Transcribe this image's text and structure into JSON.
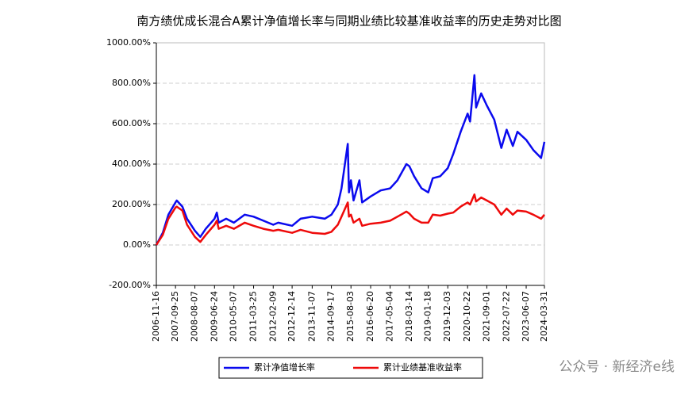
{
  "chart_data": {
    "type": "line",
    "title": "南方绩优成长混合A累计净值增长率与同期业绩比较基准收益率的历史走势对比图",
    "x": [
      "2006-11-16",
      "2007-03-01",
      "2007-06-01",
      "2007-09-25",
      "2007-10-16",
      "2008-01-15",
      "2008-04-01",
      "2008-08-07",
      "2008-11-04",
      "2009-02-01",
      "2009-06-24",
      "2009-08-01",
      "2009-09-01",
      "2010-01-01",
      "2010-05-07",
      "2010-11-01",
      "2011-03-25",
      "2011-09-01",
      "2012-02-09",
      "2012-05-01",
      "2012-12-14",
      "2013-05-01",
      "2013-11-07",
      "2014-06-01",
      "2014-09-17",
      "2014-12-31",
      "2015-03-01",
      "2015-06-12",
      "2015-07-01",
      "2015-08-03",
      "2015-09-15",
      "2015-12-20",
      "2016-02-01",
      "2016-06-20",
      "2016-12-01",
      "2017-05-04",
      "2017-09-01",
      "2018-01-25",
      "2018-03-14",
      "2018-06-01",
      "2018-10-01",
      "2019-01-18",
      "2019-04-01",
      "2019-08-01",
      "2019-12-03",
      "2020-03-01",
      "2020-07-01",
      "2020-10-22",
      "2020-12-01",
      "2021-02-10",
      "2021-03-10",
      "2021-06-01",
      "2021-09-01",
      "2022-01-01",
      "2022-04-27",
      "2022-07-22",
      "2022-11-01",
      "2023-01-15",
      "2023-06-07",
      "2023-10-01",
      "2024-02-05",
      "2024-03-31"
    ],
    "series": [
      {
        "name": "累计净值增长率",
        "color": "#0a0aee",
        "values": [
          0,
          60,
          150,
          210,
          220,
          190,
          130,
          70,
          40,
          80,
          130,
          160,
          110,
          130,
          110,
          150,
          140,
          120,
          100,
          110,
          95,
          130,
          140,
          130,
          150,
          200,
          280,
          500,
          260,
          320,
          220,
          320,
          210,
          240,
          270,
          280,
          320,
          400,
          390,
          340,
          280,
          260,
          330,
          340,
          380,
          450,
          560,
          650,
          610,
          840,
          680,
          750,
          690,
          620,
          480,
          570,
          490,
          560,
          520,
          470,
          430,
          510
        ]
      },
      {
        "name": "累计业绩基准收益率",
        "color": "#ee0a0a",
        "values": [
          0,
          50,
          130,
          185,
          190,
          170,
          100,
          40,
          15,
          50,
          100,
          120,
          80,
          95,
          80,
          110,
          95,
          80,
          70,
          75,
          60,
          75,
          60,
          55,
          65,
          100,
          140,
          210,
          140,
          150,
          110,
          130,
          95,
          105,
          110,
          120,
          140,
          165,
          155,
          130,
          110,
          110,
          150,
          145,
          155,
          160,
          190,
          210,
          200,
          250,
          215,
          235,
          220,
          200,
          150,
          180,
          150,
          170,
          165,
          150,
          130,
          150
        ]
      }
    ],
    "xlim": [
      "2006-11-16",
      "2024-03-31"
    ],
    "xticks": [
      "2006-11-16",
      "2007-09-25",
      "2008-08-07",
      "2009-06-24",
      "2010-05-07",
      "2011-03-25",
      "2012-02-09",
      "2012-12-14",
      "2013-11-07",
      "2014-09-17",
      "2015-08-03",
      "2016-06-20",
      "2017-05-04",
      "2018-03-14",
      "2019-01-18",
      "2019-12-03",
      "2020-10-22",
      "2021-09-01",
      "2022-07-22",
      "2023-06-07",
      "2024-03-31"
    ],
    "ylim": [
      -200,
      1000
    ],
    "yticks": [
      {
        "value": -200,
        "label": "-200.00%"
      },
      {
        "value": 0,
        "label": "0.00%"
      },
      {
        "value": 200,
        "label": "200.00%"
      },
      {
        "value": 400,
        "label": "400.00%"
      },
      {
        "value": 600,
        "label": "600.00%"
      },
      {
        "value": 800,
        "label": "800.00%"
      },
      {
        "value": 1000,
        "label": "1000.00%"
      }
    ],
    "grid": true,
    "legend": "bottom",
    "watermark": "公众号 · 新经济e线"
  }
}
